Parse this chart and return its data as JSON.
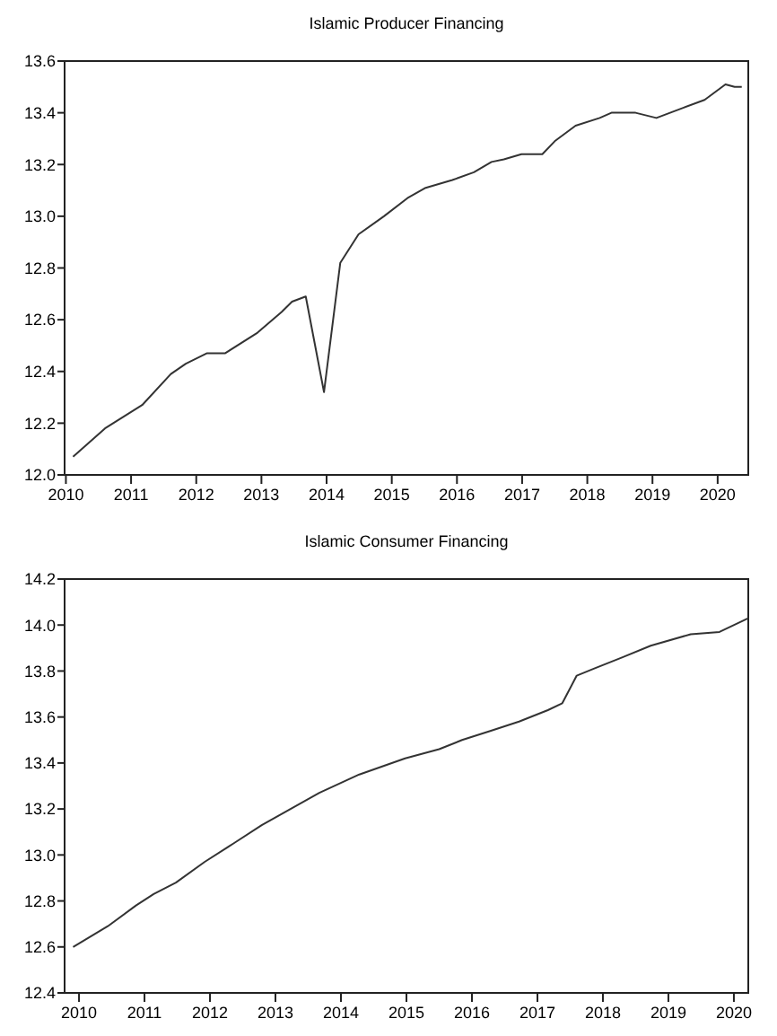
{
  "chart_data": [
    {
      "type": "line",
      "title": "Islamic Producer Financing",
      "xlim": [
        2009.98,
        2020.47
      ],
      "xticks": [
        2010,
        2011,
        2012,
        2013,
        2014,
        2015,
        2016,
        2017,
        2018,
        2019,
        2020
      ],
      "ylim": [
        12.0,
        13.6
      ],
      "yticks": [
        {
          "value": 12,
          "label": "12.0"
        },
        12.2,
        12.4,
        12.6,
        12.8,
        {
          "value": 13,
          "label": "13.0"
        },
        13.2,
        13.4,
        13.6
      ],
      "marker": "none",
      "line_style": "solid",
      "series": [
        {
          "color": "#333333",
          "x": [
            2010.11,
            2010.6,
            2011.17,
            2011.61,
            2011.84,
            2012.16,
            2012.44,
            2012.94,
            2013.31,
            2013.47,
            2013.68,
            2013.96,
            2014.21,
            2014.49,
            2014.88,
            2015.24,
            2015.52,
            2015.93,
            2016.26,
            2016.53,
            2016.72,
            2016.99,
            2017.31,
            2017.5,
            2017.82,
            2018.19,
            2018.37,
            2018.74,
            2019.06,
            2019.48,
            2019.8,
            2020.12,
            2020.26,
            2020.37
          ],
          "values": [
            12.07,
            12.18,
            12.27,
            12.39,
            12.43,
            12.47,
            12.47,
            12.55,
            12.63,
            12.67,
            12.69,
            12.32,
            12.82,
            12.93,
            13.0,
            13.07,
            13.11,
            13.14,
            13.17,
            13.21,
            13.22,
            13.24,
            13.24,
            13.29,
            13.35,
            13.38,
            13.4,
            13.4,
            13.38,
            13.42,
            13.45,
            13.51,
            13.5,
            13.5
          ]
        }
      ]
    },
    {
      "type": "line",
      "title": "Islamic Consumer Financing",
      "xlim": [
        2009.78,
        2020.22
      ],
      "xticks": [
        2010,
        2011,
        2012,
        2013,
        2014,
        2015,
        2016,
        2017,
        2018,
        2019,
        2020
      ],
      "ylim": [
        12.4,
        14.2
      ],
      "yticks": [
        12.4,
        12.6,
        12.8,
        {
          "value": 13,
          "label": "13.0"
        },
        13.2,
        13.4,
        13.6,
        13.8,
        {
          "value": 14,
          "label": "14.0"
        },
        14.2
      ],
      "marker": "none",
      "line_style": "solid",
      "series": [
        {
          "color": "#333333",
          "x": [
            2009.91,
            2010.44,
            2010.87,
            2011.14,
            2011.48,
            2011.92,
            2012.36,
            2012.79,
            2013.23,
            2013.67,
            2014.28,
            2014.98,
            2015.5,
            2015.85,
            2016.29,
            2016.72,
            2017.16,
            2017.38,
            2017.6,
            2017.86,
            2018.3,
            2018.73,
            2019.34,
            2019.78,
            2020.22
          ],
          "values": [
            12.6,
            12.69,
            12.78,
            12.83,
            12.88,
            12.97,
            13.05,
            13.13,
            13.2,
            13.27,
            13.35,
            13.42,
            13.46,
            13.5,
            13.54,
            13.58,
            13.63,
            13.66,
            13.78,
            13.81,
            13.86,
            13.91,
            13.96,
            13.97,
            14.03
          ]
        }
      ]
    }
  ]
}
